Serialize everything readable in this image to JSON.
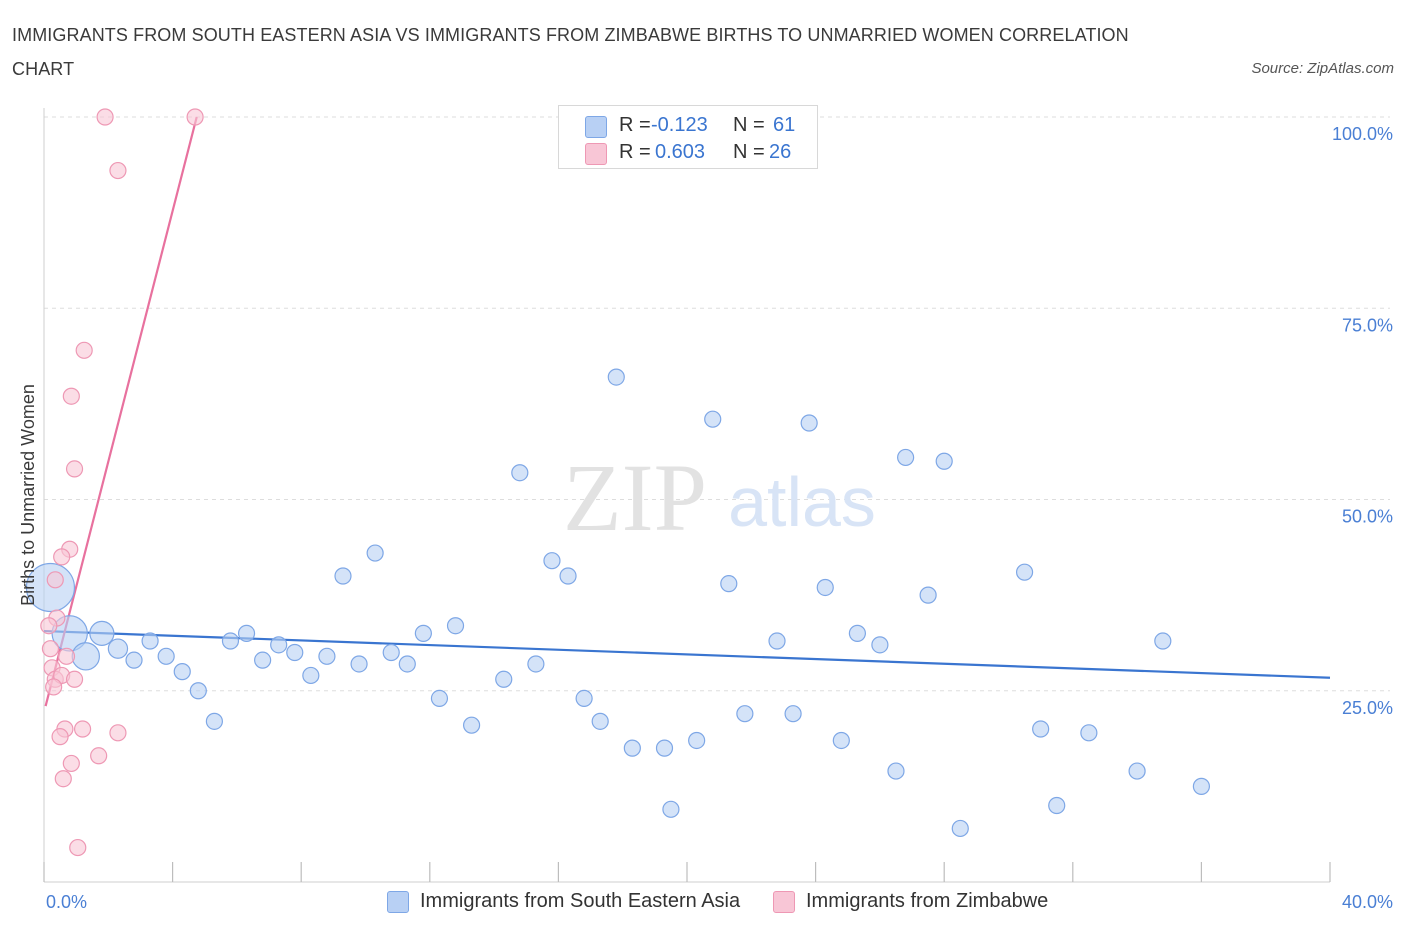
{
  "title": "IMMIGRANTS FROM SOUTH EASTERN ASIA VS IMMIGRANTS FROM ZIMBABWE BIRTHS TO UNMARRIED WOMEN CORRELATION CHART",
  "source": "Source: ZipAtlas.com",
  "watermark": {
    "zip": "ZIP",
    "atlas": "atlas"
  },
  "colors": {
    "blue_fill": "#b8d0f4",
    "blue_stroke": "#7ea7e6",
    "blue_line": "#3a75d0",
    "pink_fill": "#f8c6d6",
    "pink_stroke": "#ee98b4",
    "pink_line": "#e8719e",
    "axis_text": "#4a7fd4",
    "grid": "#dddddd"
  },
  "legend": {
    "rows": [
      {
        "r_label": "R =",
        "r_value": "-0.123",
        "n_label": "N =",
        "n_value": "61",
        "color": "#b8d0f4"
      },
      {
        "r_label": "R =",
        "r_value": "0.603",
        "n_label": "N =",
        "n_value": "26",
        "color": "#f8c6d6"
      }
    ]
  },
  "chart_data": {
    "type": "scatter",
    "title": "IMMIGRANTS FROM SOUTH EASTERN ASIA VS IMMIGRANTS FROM ZIMBABWE BIRTHS TO UNMARRIED WOMEN CORRELATION CHART",
    "xlabel": "",
    "ylabel": "Births to Unmarried Women",
    "xlim": [
      0,
      40
    ],
    "ylim": [
      0,
      100
    ],
    "x_tick_labels": [
      "0.0%",
      "40.0%"
    ],
    "y_tick_labels": [
      "25.0%",
      "50.0%",
      "75.0%",
      "100.0%"
    ],
    "y_ticks": [
      25,
      50,
      75,
      100
    ],
    "grid": true,
    "legend_position": "bottom",
    "series": [
      {
        "name": "Immigrants from South Eastern Asia",
        "color": "#b8d0f4",
        "trend": {
          "x": [
            0,
            40
          ],
          "y": [
            32.8,
            26.7
          ]
        },
        "points": [
          [
            0.2,
            38.5,
            3
          ],
          [
            0.8,
            32.5,
            2.2
          ],
          [
            1.3,
            29.5,
            1.7
          ],
          [
            1.8,
            32.5,
            1.5
          ],
          [
            2.3,
            30.5,
            1.2
          ],
          [
            2.8,
            29,
            1
          ],
          [
            3.3,
            31.5,
            1
          ],
          [
            3.8,
            29.5,
            1
          ],
          [
            4.3,
            27.5,
            1
          ],
          [
            4.8,
            25,
            1
          ],
          [
            5.3,
            21,
            1
          ],
          [
            5.8,
            31.5,
            1
          ],
          [
            6.3,
            32.5,
            1
          ],
          [
            6.8,
            29,
            1
          ],
          [
            7.3,
            31,
            1
          ],
          [
            7.8,
            30,
            1
          ],
          [
            8.3,
            27,
            1
          ],
          [
            8.8,
            29.5,
            1
          ],
          [
            9.3,
            40,
            1
          ],
          [
            9.8,
            28.5,
            1
          ],
          [
            10.3,
            43,
            1
          ],
          [
            10.8,
            30,
            1
          ],
          [
            11.3,
            28.5,
            1
          ],
          [
            11.8,
            32.5,
            1
          ],
          [
            12.3,
            24,
            1
          ],
          [
            12.8,
            33.5,
            1
          ],
          [
            13.3,
            20.5,
            1
          ],
          [
            14.3,
            26.5,
            1
          ],
          [
            14.8,
            53.5,
            1
          ],
          [
            15.3,
            28.5,
            1
          ],
          [
            15.8,
            42,
            1
          ],
          [
            16.3,
            40,
            1
          ],
          [
            16.8,
            24,
            1
          ],
          [
            17.3,
            21,
            1
          ],
          [
            17.8,
            66,
            1
          ],
          [
            18.3,
            17.5,
            1
          ],
          [
            19.3,
            17.5,
            1
          ],
          [
            20.3,
            18.5,
            1
          ],
          [
            20.8,
            60.5,
            1
          ],
          [
            21.3,
            39,
            1
          ],
          [
            21.8,
            22,
            1
          ],
          [
            22.8,
            31.5,
            1
          ],
          [
            23.3,
            22,
            1
          ],
          [
            23.8,
            60,
            1
          ],
          [
            24.3,
            38.5,
            1
          ],
          [
            24.8,
            18.5,
            1
          ],
          [
            25.3,
            32.5,
            1
          ],
          [
            26.0,
            31,
            1
          ],
          [
            26.5,
            14.5,
            1
          ],
          [
            26.8,
            55.5,
            1
          ],
          [
            27.5,
            37.5,
            1
          ],
          [
            28.0,
            55,
            1
          ],
          [
            28.5,
            7,
            1
          ],
          [
            30.5,
            40.5,
            1
          ],
          [
            31.0,
            20,
            1
          ],
          [
            31.5,
            10,
            1
          ],
          [
            32.5,
            19.5,
            1
          ],
          [
            34.0,
            14.5,
            1
          ],
          [
            34.8,
            31.5,
            1
          ],
          [
            36.0,
            12.5,
            1
          ],
          [
            19.5,
            9.5,
            1
          ]
        ]
      },
      {
        "name": "Immigrants from Zimbabwe",
        "color": "#f8c6d6",
        "trend": {
          "x": [
            0.05,
            4.75
          ],
          "y": [
            23,
            100
          ]
        },
        "points": [
          [
            1.9,
            100,
            1
          ],
          [
            4.7,
            100,
            1
          ],
          [
            2.3,
            93,
            1
          ],
          [
            1.25,
            69.5,
            1
          ],
          [
            0.85,
            63.5,
            1
          ],
          [
            0.95,
            54,
            1
          ],
          [
            0.8,
            43.5,
            1
          ],
          [
            0.55,
            42.5,
            1
          ],
          [
            0.35,
            39.5,
            1
          ],
          [
            0.4,
            34.5,
            1
          ],
          [
            0.15,
            33.5,
            1
          ],
          [
            0.2,
            30.5,
            1
          ],
          [
            0.25,
            28,
            1
          ],
          [
            0.35,
            26.5,
            1
          ],
          [
            0.55,
            27,
            1
          ],
          [
            0.7,
            29.5,
            1
          ],
          [
            0.95,
            26.5,
            1
          ],
          [
            0.3,
            25.5,
            1
          ],
          [
            0.65,
            20,
            1
          ],
          [
            1.2,
            20,
            1
          ],
          [
            0.5,
            19,
            1
          ],
          [
            2.3,
            19.5,
            1
          ],
          [
            1.7,
            16.5,
            1
          ],
          [
            0.85,
            15.5,
            1
          ],
          [
            0.6,
            13.5,
            1
          ],
          [
            1.05,
            4.5,
            1
          ]
        ]
      }
    ]
  },
  "bottom_legend": [
    {
      "label": "Immigrants from South Eastern Asia",
      "color": "#b8d0f4"
    },
    {
      "label": "Immigrants from Zimbabwe",
      "color": "#f8c6d6"
    }
  ]
}
